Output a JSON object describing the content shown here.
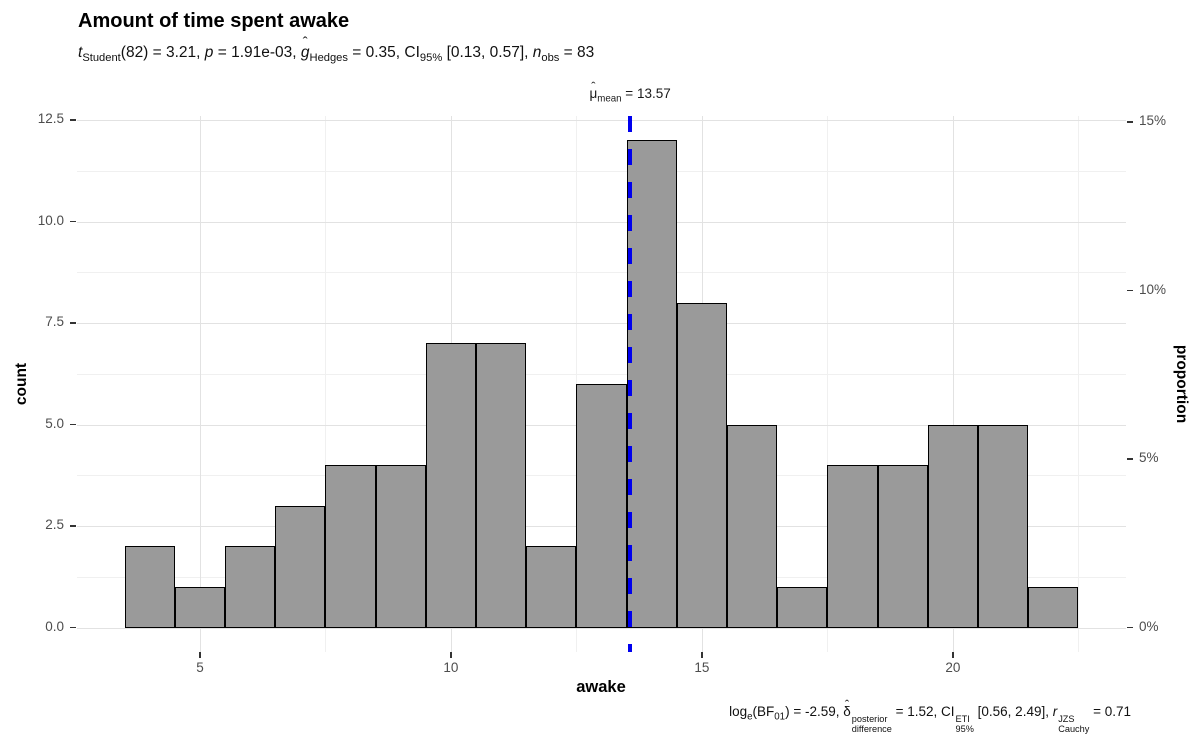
{
  "figure": {
    "title": "Amount of time spent awake",
    "subtitle_text": "t Student(82) = 3.21, p = 1.91e-03, g Hedges = 0.35, CI 95% [0.13, 0.57], n obs = 83",
    "subtitle_segments": [
      {
        "t": "t",
        "it": true
      },
      {
        "t": "Student",
        "kind": "sub"
      },
      {
        "t": "(82) = 3.21, "
      },
      {
        "t": "p",
        "it": true
      },
      {
        "t": " = 1.91e-03, "
      },
      {
        "t": "g",
        "it": true,
        "hat": true
      },
      {
        "t": "Hedges",
        "kind": "sub"
      },
      {
        "t": " = 0.35, CI"
      },
      {
        "t": "95%",
        "kind": "sub"
      },
      {
        "t": " [0.13, 0.57], "
      },
      {
        "t": "n",
        "it": true
      },
      {
        "t": "obs",
        "kind": "sub"
      },
      {
        "t": " = 83"
      }
    ],
    "caption_text": "log e(BF 01) = -2.59, δ posterior/difference = 1.52, CI ETI/95% [0.56, 2.49], r JZS/Cauchy = 0.71",
    "caption_segments": [
      {
        "t": "log"
      },
      {
        "t": "e",
        "kind": "sub"
      },
      {
        "t": "(BF"
      },
      {
        "t": "01",
        "kind": "sub"
      },
      {
        "t": ") = -2.59, "
      },
      {
        "t": "δ",
        "hat": true
      },
      {
        "kind": "stack",
        "sup": "posterior",
        "sub": "difference"
      },
      {
        "t": " = 1.52, CI"
      },
      {
        "kind": "stack",
        "sup": "ETI",
        "sub": "95%"
      },
      {
        "t": " [0.56, 2.49], "
      },
      {
        "t": "r",
        "it": true
      },
      {
        "kind": "stack",
        "sup": "JZS",
        "sub": "Cauchy"
      },
      {
        "t": " = 0.71"
      }
    ],
    "mean_label_segments": [
      {
        "t": "μ",
        "hat": true
      },
      {
        "t": "mean",
        "kind": "sub"
      },
      {
        "t": " = 13.57"
      }
    ]
  },
  "chart_data": {
    "type": "bar",
    "subtype": "histogram",
    "title": "Amount of time spent awake",
    "xlabel": "awake",
    "ylabel_left": "count",
    "ylabel_right": "proportion",
    "n_obs": 83,
    "bins": {
      "start": 3.5,
      "width": 1,
      "centers": [
        4,
        5,
        6,
        7,
        8,
        9,
        10,
        11,
        12,
        13,
        14,
        15,
        16,
        17,
        18,
        19,
        20,
        21,
        22
      ],
      "counts": [
        2,
        1,
        2,
        3,
        4,
        4,
        7,
        7,
        2,
        6,
        12,
        8,
        5,
        1,
        4,
        4,
        5,
        5,
        1
      ]
    },
    "mean_line": {
      "value": 13.57,
      "label_value_text": " = 13.57",
      "style": "dashed",
      "color": "#0000ee"
    },
    "x_axis": {
      "range": [
        2.55,
        23.45
      ],
      "major_ticks": [
        5,
        10,
        15,
        20
      ],
      "tick_labels": [
        "5",
        "10",
        "15",
        "20"
      ],
      "minor_gridlines": [
        2.5,
        7.5,
        12.5,
        17.5,
        22.5
      ]
    },
    "y_axis_left": {
      "range": [
        -0.6,
        12.6
      ],
      "major_ticks": [
        0,
        2.5,
        5,
        7.5,
        10,
        12.5
      ],
      "tick_labels": [
        "0.0",
        "2.5",
        "5.0",
        "7.5",
        "10.0",
        "12.5"
      ],
      "minor_gridlines": [
        1.25,
        3.75,
        6.25,
        8.75,
        11.25
      ]
    },
    "y_axis_right": {
      "tick_values": [
        0,
        4.15,
        8.3,
        12.45
      ],
      "tick_labels": [
        "0%",
        "5%",
        "10%",
        "15%"
      ]
    },
    "grid": true,
    "legend": "none",
    "colors": {
      "bar_fill": "#9a9a9a",
      "bar_stroke": "#000000",
      "mean_line": "#0000ee",
      "grid_major": "#e2e2e2",
      "grid_minor": "#f0f0f0",
      "axis_text": "#4d4d4d",
      "title_text": "#000000",
      "background": "#ffffff"
    }
  }
}
